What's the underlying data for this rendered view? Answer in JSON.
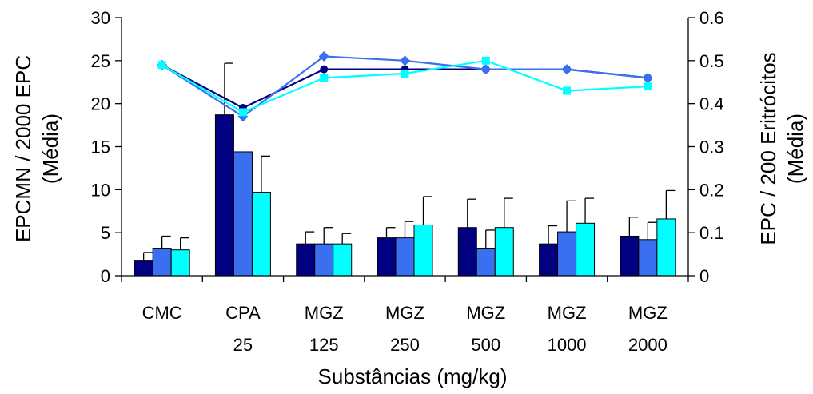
{
  "chart_data": {
    "type": "bar",
    "title": "",
    "categories": [
      {
        "line1": "CMC",
        "line2": ""
      },
      {
        "line1": "CPA",
        "line2": "25"
      },
      {
        "line1": "MGZ",
        "line2": "125"
      },
      {
        "line1": "MGZ",
        "line2": "250"
      },
      {
        "line1": "MGZ",
        "line2": "500"
      },
      {
        "line1": "MGZ",
        "line2": "1000"
      },
      {
        "line1": "MGZ",
        "line2": "2000"
      }
    ],
    "xlabel": "Substâncias (mg/kg)",
    "ylabel_left": {
      "line1": "EPCMN / 2000 EPC",
      "line2": "(Média)"
    },
    "ylabel_right": {
      "line1": "EPC / 200 Eritrócitos",
      "line2": "(Média)"
    },
    "y_left": {
      "min": 0,
      "max": 30,
      "ticks": [
        0,
        5,
        10,
        15,
        20,
        25,
        30
      ]
    },
    "y_right": {
      "min": 0,
      "max": 0.6,
      "ticks": [
        "0",
        "0.1",
        "0.2",
        "0.3",
        "0.4",
        "0.5",
        "0.6"
      ]
    },
    "grid": false,
    "legend": "none",
    "bar_series": [
      {
        "color": "#000080",
        "values": [
          1.8,
          18.7,
          3.7,
          4.4,
          5.6,
          3.7,
          4.6
        ],
        "errors": [
          0.9,
          6.0,
          1.4,
          1.2,
          3.3,
          2.1,
          2.2
        ]
      },
      {
        "color": "#3a6ff0",
        "values": [
          3.2,
          14.4,
          3.7,
          4.4,
          3.2,
          5.1,
          4.2
        ],
        "errors": [
          1.4,
          0.0,
          1.9,
          1.9,
          2.1,
          3.6,
          2.0
        ]
      },
      {
        "color": "#00ffff",
        "values": [
          3.0,
          9.7,
          3.7,
          5.9,
          5.6,
          6.1,
          6.6
        ],
        "errors": [
          1.4,
          4.2,
          1.2,
          3.3,
          3.4,
          2.9,
          3.3
        ]
      }
    ],
    "line_series": [
      {
        "color": "#000080",
        "marker": "circle",
        "values": [
          0.49,
          0.39,
          0.48,
          0.48,
          0.48,
          0.48,
          0.46
        ]
      },
      {
        "color": "#3a6ff0",
        "marker": "diamond",
        "values": [
          0.49,
          0.37,
          0.51,
          0.5,
          0.48,
          0.48,
          0.46
        ]
      },
      {
        "color": "#00ffff",
        "marker": "square",
        "values": [
          0.49,
          0.38,
          0.46,
          0.47,
          0.5,
          0.43,
          0.44
        ]
      }
    ]
  }
}
